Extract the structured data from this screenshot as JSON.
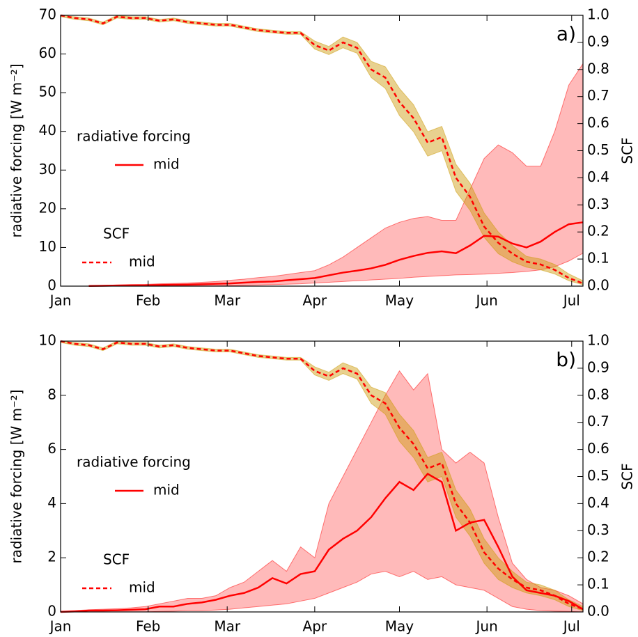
{
  "chart_data": [
    {
      "type": "line",
      "annotation": "a)",
      "ylabel": "radiative forcing [W m⁻²]",
      "y2label": "SCF",
      "x": [
        0,
        5,
        10,
        15,
        20,
        25,
        30,
        35,
        40,
        45,
        50,
        55,
        60,
        65,
        70,
        75,
        80,
        85,
        90,
        95,
        100,
        105,
        110,
        115,
        120,
        125,
        130,
        135,
        140,
        145,
        150,
        155,
        160,
        165,
        170,
        175,
        180,
        185
      ],
      "xlim": [
        0,
        185
      ],
      "xticks": [
        {
          "value": 0,
          "label": "Jan"
        },
        {
          "value": 31,
          "label": "Feb"
        },
        {
          "value": 59,
          "label": "Mar"
        },
        {
          "value": 90,
          "label": "Apr"
        },
        {
          "value": 120,
          "label": "May"
        },
        {
          "value": 151,
          "label": "Jun"
        },
        {
          "value": 181,
          "label": "Jul"
        }
      ],
      "ylim": [
        0,
        70
      ],
      "yticks": [
        0,
        10,
        20,
        30,
        40,
        50,
        60,
        70
      ],
      "y2lim": [
        0,
        1
      ],
      "y2ticks": [
        {
          "value": 0,
          "label": "0.0"
        },
        0.1,
        0.2,
        0.3,
        0.4,
        0.5,
        0.6,
        0.7,
        0.8,
        0.9,
        {
          "value": 1,
          "label": "1.0"
        }
      ],
      "series": [
        {
          "name": "mid",
          "legend_title": "radiative forcing",
          "color": "#ff0000",
          "band_color": "#ff0000",
          "dash": false,
          "values": [
            null,
            null,
            0.05,
            0.1,
            0.15,
            0.2,
            0.2,
            0.3,
            0.35,
            0.4,
            0.5,
            0.6,
            0.7,
            0.9,
            1.1,
            1.2,
            1.5,
            1.8,
            2.1,
            2.8,
            3.5,
            4.0,
            4.6,
            5.5,
            6.8,
            7.8,
            8.6,
            9.0,
            8.5,
            10.5,
            13.0,
            12.8,
            11.0,
            10.0,
            11.5,
            14.0,
            16.0,
            16.5
          ],
          "lower": [
            null,
            null,
            0,
            0,
            0,
            0,
            0,
            0,
            0.05,
            0.1,
            0.1,
            0.1,
            0.15,
            0.2,
            0.3,
            0.4,
            0.5,
            0.6,
            0.8,
            1.0,
            1.2,
            1.4,
            1.6,
            1.8,
            2.0,
            2.3,
            2.5,
            2.7,
            2.9,
            3.0,
            3.1,
            3.3,
            3.5,
            3.8,
            4.2,
            5.0,
            6.5,
            8.5
          ],
          "upper": [
            null,
            null,
            0.1,
            0.2,
            0.3,
            0.4,
            0.45,
            0.6,
            0.7,
            0.8,
            1.0,
            1.2,
            1.5,
            1.8,
            2.2,
            2.5,
            3.0,
            3.5,
            4.0,
            5.5,
            7.5,
            10.0,
            12.5,
            15.0,
            16.5,
            17.5,
            18.0,
            17.0,
            17.0,
            25.0,
            33.0,
            36.5,
            34.5,
            31.0,
            31.0,
            40.0,
            52.0,
            57.5
          ]
        },
        {
          "name": "mid",
          "legend_title": "SCF",
          "axis": "y2",
          "color": "#ff0000",
          "band_color": "#cc9a06",
          "dash": true,
          "values": [
            1.0,
            0.99,
            0.985,
            0.97,
            0.995,
            0.99,
            0.99,
            0.98,
            0.985,
            0.975,
            0.97,
            0.965,
            0.965,
            0.955,
            0.945,
            0.94,
            0.935,
            0.935,
            0.89,
            0.87,
            0.9,
            0.88,
            0.8,
            0.77,
            0.68,
            0.62,
            0.53,
            0.55,
            0.4,
            0.33,
            0.22,
            0.16,
            0.12,
            0.09,
            0.08,
            0.06,
            0.03,
            0.01
          ],
          "lower": [
            0.995,
            0.985,
            0.98,
            0.965,
            0.99,
            0.985,
            0.985,
            0.975,
            0.98,
            0.97,
            0.965,
            0.96,
            0.96,
            0.95,
            0.94,
            0.935,
            0.93,
            0.93,
            0.875,
            0.855,
            0.88,
            0.86,
            0.77,
            0.73,
            0.63,
            0.57,
            0.48,
            0.5,
            0.35,
            0.28,
            0.18,
            0.12,
            0.09,
            0.07,
            0.06,
            0.045,
            0.02,
            0.005
          ],
          "upper": [
            1.0,
            0.995,
            0.99,
            0.975,
            1.0,
            0.995,
            0.995,
            0.985,
            0.99,
            0.98,
            0.975,
            0.97,
            0.97,
            0.96,
            0.95,
            0.945,
            0.94,
            0.94,
            0.905,
            0.885,
            0.92,
            0.9,
            0.83,
            0.81,
            0.73,
            0.67,
            0.57,
            0.59,
            0.45,
            0.38,
            0.27,
            0.2,
            0.15,
            0.11,
            0.1,
            0.08,
            0.045,
            0.02
          ]
        }
      ]
    },
    {
      "type": "line",
      "annotation": "b)",
      "ylabel": "radiative forcing [W m⁻²]",
      "y2label": "SCF",
      "x": [
        0,
        5,
        10,
        15,
        20,
        25,
        30,
        35,
        40,
        45,
        50,
        55,
        60,
        65,
        70,
        75,
        80,
        85,
        90,
        95,
        100,
        105,
        110,
        115,
        120,
        125,
        130,
        135,
        140,
        145,
        150,
        155,
        160,
        165,
        170,
        175,
        180,
        185
      ],
      "xlim": [
        0,
        185
      ],
      "xticks": [
        {
          "value": 0,
          "label": "Jan"
        },
        {
          "value": 31,
          "label": "Feb"
        },
        {
          "value": 59,
          "label": "Mar"
        },
        {
          "value": 90,
          "label": "Apr"
        },
        {
          "value": 120,
          "label": "May"
        },
        {
          "value": 151,
          "label": "Jun"
        },
        {
          "value": 181,
          "label": "Jul"
        }
      ],
      "ylim": [
        0,
        10
      ],
      "yticks": [
        0,
        2,
        4,
        6,
        8,
        10
      ],
      "y2lim": [
        0,
        1
      ],
      "y2ticks": [
        {
          "value": 0,
          "label": "0.0"
        },
        0.1,
        0.2,
        0.3,
        0.4,
        0.5,
        0.6,
        0.7,
        0.8,
        0.9,
        {
          "value": 1,
          "label": "1.0"
        }
      ],
      "series": [
        {
          "name": "mid",
          "legend_title": "radiative forcing",
          "color": "#ff0000",
          "band_color": "#ff0000",
          "dash": false,
          "values": [
            0,
            0.02,
            0.05,
            0.05,
            0.06,
            0.08,
            0.1,
            0.2,
            0.2,
            0.3,
            0.35,
            0.45,
            0.6,
            0.7,
            0.9,
            1.25,
            1.05,
            1.4,
            1.5,
            2.3,
            2.7,
            3.0,
            3.5,
            4.2,
            4.8,
            4.5,
            5.1,
            4.8,
            3.0,
            3.3,
            3.4,
            2.4,
            1.3,
            0.8,
            0.7,
            0.6,
            0.4,
            0.1
          ],
          "lower": [
            0,
            0,
            0,
            0,
            0,
            0,
            0,
            0.02,
            0.03,
            0.05,
            0.05,
            0.07,
            0.1,
            0.15,
            0.2,
            0.25,
            0.3,
            0.4,
            0.5,
            0.7,
            0.9,
            1.1,
            1.4,
            1.5,
            1.3,
            1.5,
            1.2,
            1.3,
            1.0,
            0.9,
            0.8,
            0.5,
            0.2,
            0.1,
            0.05,
            0.03,
            0.02,
            0
          ],
          "upper": [
            0.03,
            0.05,
            0.08,
            0.1,
            0.12,
            0.15,
            0.2,
            0.3,
            0.4,
            0.5,
            0.5,
            0.6,
            0.9,
            1.1,
            1.5,
            1.9,
            1.5,
            2.4,
            2.0,
            4.0,
            5.0,
            6.0,
            7.0,
            8.0,
            8.9,
            8.2,
            8.8,
            6.0,
            5.5,
            5.9,
            5.5,
            3.5,
            1.8,
            1.2,
            0.9,
            0.8,
            0.6,
            0.3
          ]
        },
        {
          "name": "mid",
          "legend_title": "SCF",
          "axis": "y2",
          "color": "#ff0000",
          "band_color": "#cc9a06",
          "dash": true,
          "values": [
            1.0,
            0.99,
            0.985,
            0.97,
            0.995,
            0.99,
            0.99,
            0.98,
            0.985,
            0.975,
            0.97,
            0.965,
            0.965,
            0.955,
            0.945,
            0.94,
            0.935,
            0.935,
            0.89,
            0.87,
            0.9,
            0.88,
            0.8,
            0.77,
            0.68,
            0.62,
            0.53,
            0.55,
            0.4,
            0.33,
            0.22,
            0.16,
            0.12,
            0.09,
            0.08,
            0.06,
            0.03,
            0.01
          ],
          "lower": [
            0.995,
            0.985,
            0.98,
            0.965,
            0.99,
            0.985,
            0.985,
            0.975,
            0.98,
            0.97,
            0.965,
            0.96,
            0.96,
            0.95,
            0.94,
            0.935,
            0.93,
            0.93,
            0.875,
            0.855,
            0.88,
            0.86,
            0.77,
            0.73,
            0.63,
            0.57,
            0.48,
            0.5,
            0.35,
            0.28,
            0.18,
            0.12,
            0.09,
            0.07,
            0.06,
            0.045,
            0.02,
            0.005
          ],
          "upper": [
            1.0,
            0.995,
            0.99,
            0.975,
            1.0,
            0.995,
            0.995,
            0.985,
            0.99,
            0.98,
            0.975,
            0.97,
            0.97,
            0.96,
            0.95,
            0.945,
            0.94,
            0.94,
            0.905,
            0.885,
            0.92,
            0.9,
            0.83,
            0.81,
            0.73,
            0.67,
            0.57,
            0.59,
            0.45,
            0.38,
            0.27,
            0.2,
            0.15,
            0.11,
            0.1,
            0.08,
            0.045,
            0.02
          ]
        }
      ]
    }
  ]
}
